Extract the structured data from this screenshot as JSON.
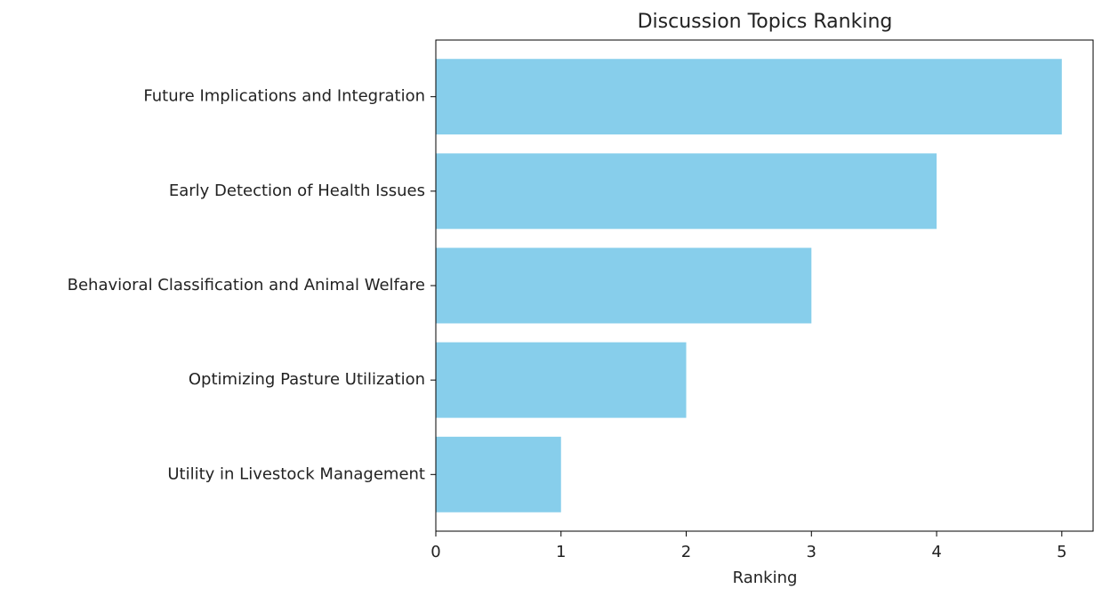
{
  "chart_data": {
    "type": "barh",
    "title": "Discussion Topics Ranking",
    "x_label": "Ranking",
    "categories": [
      "Utility in Livestock Management",
      "Optimizing Pasture Utilization",
      "Behavioral Classification and Animal Welfare",
      "Early Detection of Health Issues",
      "Future Implications and Integration"
    ],
    "values": [
      1,
      2,
      3,
      4,
      5
    ],
    "color": "#87ceeb",
    "xlim": [
      0,
      5.25
    ],
    "xticks": [
      0,
      1,
      2,
      3,
      4,
      5
    ]
  }
}
